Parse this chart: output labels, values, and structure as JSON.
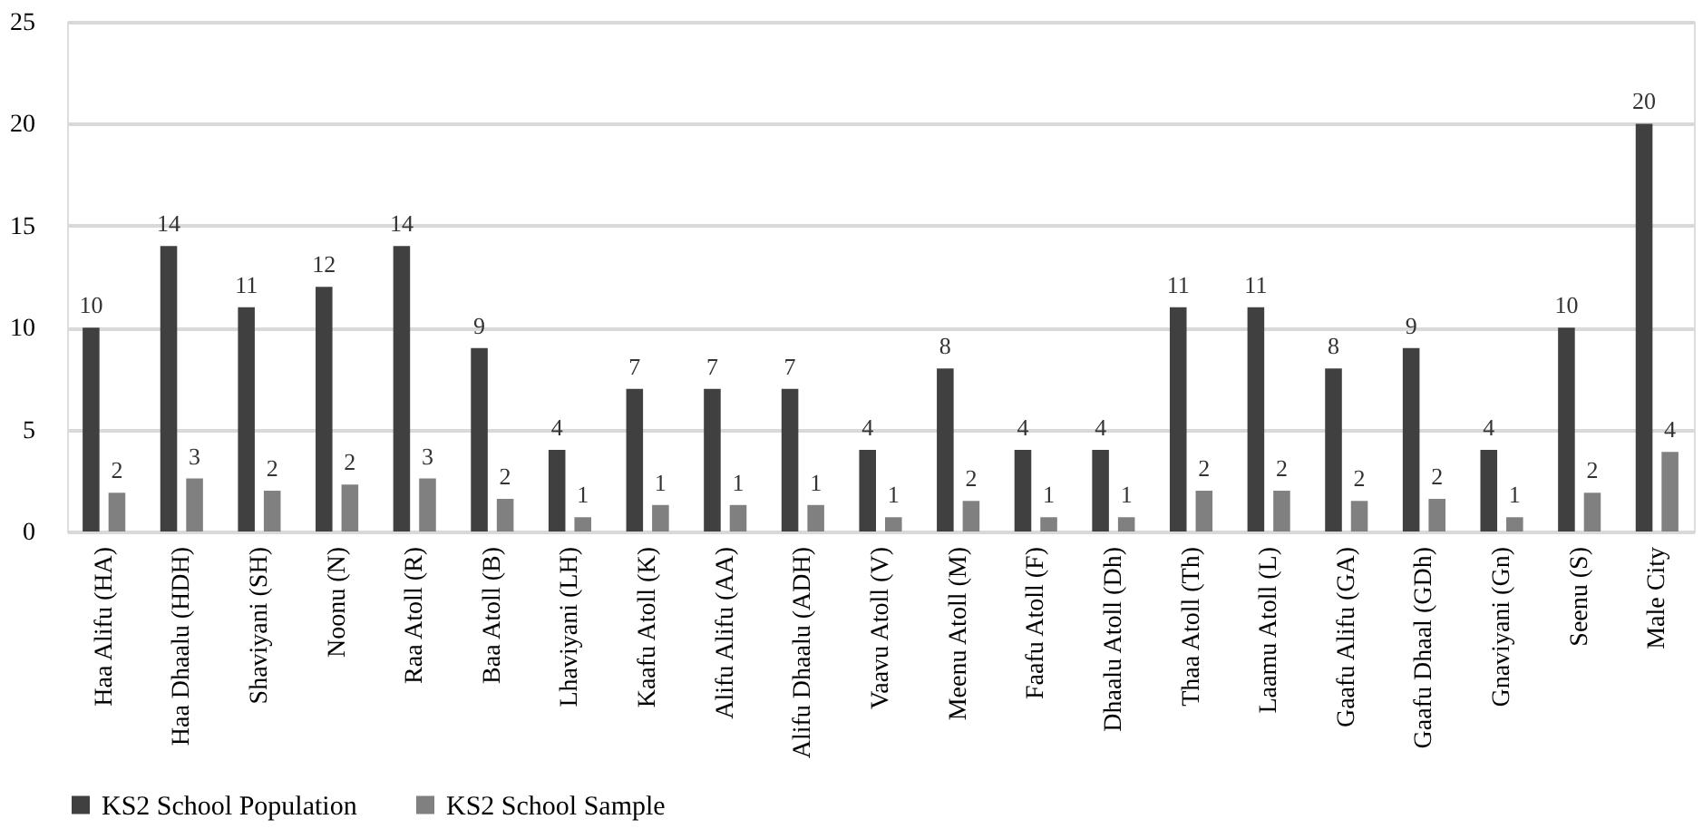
{
  "chart_data": {
    "type": "bar",
    "categories": [
      "Haa Alifu (HA)",
      "Haa Dhaalu (HDH)",
      "Shaviyani (SH)",
      "Noonu (N)",
      "Raa Atoll (R)",
      "Baa Atoll (B)",
      "Lhaviyani (LH)",
      "Kaafu Atoll (K)",
      "Alifu Alifu (AA)",
      "Alifu Dhaalu (ADH)",
      "Vaavu Atoll (V)",
      "Meenu Atoll (M)",
      "Faafu Atoll (F)",
      "Dhaalu Atoll (Dh)",
      "Thaa Atoll (Th)",
      "Laamu Atoll (L)",
      "Gaafu Alifu (GA)",
      "Gaafu Dhaal (GDh)",
      "Gnaviyani (Gn)",
      "Seenu (S)",
      "Male City"
    ],
    "series": [
      {
        "name": "KS2 School Population",
        "color": "#404040",
        "values": [
          10,
          14,
          11,
          12,
          14,
          9,
          4,
          7,
          7,
          7,
          4,
          8,
          4,
          4,
          11,
          11,
          8,
          9,
          4,
          10,
          20
        ],
        "value_labels": [
          "10",
          "14",
          "11",
          "12",
          "14",
          "9",
          "4",
          "7",
          "7",
          "7",
          "4",
          "8",
          "4",
          "4",
          "11",
          "11",
          "8",
          "9",
          "4",
          "10",
          "20"
        ]
      },
      {
        "name": "KS2 School Sample",
        "color": "#808080",
        "values": [
          1.9,
          2.6,
          2.0,
          2.3,
          2.6,
          1.6,
          0.7,
          1.3,
          1.3,
          1.3,
          0.7,
          1.5,
          0.7,
          0.7,
          2.0,
          2.0,
          1.5,
          1.6,
          0.7,
          1.9,
          3.9
        ],
        "value_labels": [
          "2",
          "3",
          "2",
          "2",
          "3",
          "2",
          "1",
          "1",
          "1",
          "1",
          "1",
          "2",
          "1",
          "1",
          "2",
          "2",
          "2",
          "2",
          "1",
          "2",
          "4"
        ]
      }
    ],
    "ylim": [
      0,
      25
    ],
    "yticks": [
      0,
      5,
      10,
      15,
      20,
      25
    ],
    "grid": "y",
    "legend": "bottom"
  }
}
